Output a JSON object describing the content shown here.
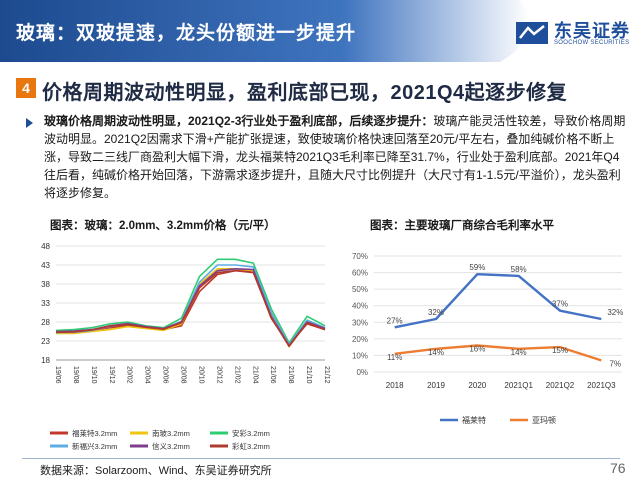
{
  "header": {
    "title": "玻璃：双玻提速，龙头份额进一步提升"
  },
  "logo": {
    "name_cn": "东吴证券",
    "name_en": "SOOCHOW SECURITIES"
  },
  "section": {
    "number": "4",
    "title": "价格周期波动性明显，盈利底部已现，2021Q4起逐步修复"
  },
  "paragraph": {
    "lead": "玻璃价格周期波动性明显，2021Q2-3行业处于盈利底部，后续逐步提升：",
    "body": "玻璃产能灵活性较差，导致价格周期波动明显。2021Q2因需求下滑+产能扩张提速，致使玻璃价格快速回落至20元/平左右，叠加纯碱价格不断上涨，导致二三线厂商盈利大幅下滑，龙头福莱特2021Q3毛利率已降至31.7%，行业处于盈利底部。2021年Q4往后看，纯碱价格开始回落，下游需求逐步提升，且随大尺寸比例提升（大尺寸有1-1.5元/平溢价），龙头盈利将逐步修复。"
  },
  "colors": {
    "brand_blue": "#1f4f9a",
    "accent_orange": "#e8770f"
  },
  "chart_data": [
    {
      "type": "line",
      "title": "图表：玻璃：2.0mm、3.2mm价格（元/平）",
      "yticks": [
        18,
        23,
        28,
        33,
        38,
        43,
        48
      ],
      "ylim": [
        18,
        48
      ],
      "x": [
        "19/06",
        "19/08",
        "19/10",
        "19/12",
        "20/02",
        "20/04",
        "20/06",
        "20/08",
        "20/10",
        "20/12",
        "21/02",
        "21/04",
        "21/06",
        "21/08",
        "21/10",
        "21/12"
      ],
      "series": [
        {
          "name": "福莱特3.2mm",
          "color": "#c0392b",
          "values": [
            25.5,
            25.5,
            25.8,
            26.5,
            27,
            26.5,
            26,
            27,
            36,
            40.5,
            41.5,
            41.5,
            29,
            22,
            27.5,
            26
          ]
        },
        {
          "name": "南玻3.2mm",
          "color": "#f1c40f",
          "values": [
            25,
            25,
            25.5,
            26,
            26.8,
            26.3,
            25.8,
            27.5,
            38,
            42,
            42,
            41.5,
            30,
            21.5,
            28,
            26.5
          ]
        },
        {
          "name": "安彩3.2mm",
          "color": "#2ecc71",
          "values": [
            25.8,
            26,
            26.5,
            27.5,
            28,
            27,
            26.5,
            29,
            40,
            44.5,
            44.5,
            43.5,
            31.5,
            22.5,
            29.5,
            27
          ]
        },
        {
          "name": "新福兴3.2mm",
          "color": "#5dade2",
          "values": [
            25.2,
            25.3,
            25.8,
            26.8,
            27.5,
            26.8,
            26.2,
            28.2,
            38.5,
            43,
            43,
            42.5,
            30.5,
            22,
            28.5,
            26.5
          ]
        },
        {
          "name": "信义3.2mm",
          "color": "#7f3c8d",
          "values": [
            25.5,
            25.6,
            26,
            27,
            27.6,
            26.8,
            26.3,
            28,
            37.5,
            41.5,
            42,
            41.8,
            29.5,
            21.8,
            28,
            26.3
          ]
        },
        {
          "name": "彩虹3.2mm",
          "color": "#b03a2e",
          "values": [
            25.3,
            25.4,
            25.9,
            26.9,
            27.3,
            26.6,
            26.1,
            27.8,
            37,
            41,
            41.5,
            41,
            29.2,
            21.6,
            27.8,
            26
          ]
        }
      ]
    },
    {
      "type": "line",
      "title": "图表：主要玻璃厂商综合毛利率水平",
      "categories": [
        "2018",
        "2019",
        "2020",
        "2021Q1",
        "2021Q2",
        "2021Q3"
      ],
      "yticks": [
        "0%",
        "10%",
        "20%",
        "30%",
        "40%",
        "50%",
        "60%",
        "70%"
      ],
      "ylim": [
        0,
        70
      ],
      "series": [
        {
          "name": "福莱特",
          "color": "#4472c4",
          "values": [
            27,
            32,
            59,
            58,
            37,
            32
          ],
          "labels": [
            "27%",
            "32%",
            "59%",
            "58%",
            "37%",
            "32%"
          ]
        },
        {
          "name": "亚玛顿",
          "color": "#ed7d31",
          "values": [
            11,
            14,
            16,
            14,
            15,
            7
          ],
          "labels": [
            "11%",
            "14%",
            "16%",
            "14%",
            "15%",
            "7%"
          ]
        }
      ]
    }
  ],
  "footer": {
    "source": "数据来源：Solarzoom、Wind、东吴证券研究所",
    "page": "76"
  }
}
